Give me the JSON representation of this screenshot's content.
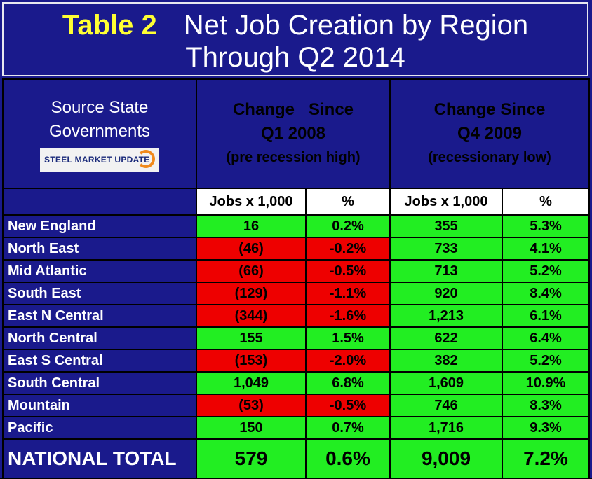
{
  "title": {
    "tag": "Table 2",
    "line1": "Net Job Creation by Region",
    "line2": "Through Q2 2014"
  },
  "header": {
    "source_line1": "Source State",
    "source_line2": "Governments",
    "logo_text": "STEEL MARKET UPDATE",
    "group1_line1": "Change   Since",
    "group1_line2": "Q1 2008",
    "group1_line3": "(pre recession high)",
    "group2_line1": "Change Since",
    "group2_line2": "Q4 2009",
    "group2_line3": "(recessionary low)"
  },
  "columns": [
    "Jobs x 1,000",
    "%",
    "Jobs x 1,000",
    "%"
  ],
  "rows": [
    {
      "name": "New England",
      "jobs1": "16",
      "pct1": "0.2%",
      "neg": false,
      "jobs2": "355",
      "pct2": "5.3%"
    },
    {
      "name": "North East",
      "jobs1": "(46)",
      "pct1": "-0.2%",
      "neg": true,
      "jobs2": "733",
      "pct2": "4.1%"
    },
    {
      "name": "Mid Atlantic",
      "jobs1": "(66)",
      "pct1": "-0.5%",
      "neg": true,
      "jobs2": "713",
      "pct2": "5.2%"
    },
    {
      "name": "South East",
      "jobs1": "(129)",
      "pct1": "-1.1%",
      "neg": true,
      "jobs2": "920",
      "pct2": "8.4%"
    },
    {
      "name": "East N Central",
      "jobs1": "(344)",
      "pct1": "-1.6%",
      "neg": true,
      "jobs2": "1,213",
      "pct2": "6.1%"
    },
    {
      "name": "North Central",
      "jobs1": "155",
      "pct1": "1.5%",
      "neg": false,
      "jobs2": "622",
      "pct2": "6.4%"
    },
    {
      "name": "East S Central",
      "jobs1": "(153)",
      "pct1": "-2.0%",
      "neg": true,
      "jobs2": "382",
      "pct2": "5.2%"
    },
    {
      "name": "South Central",
      "jobs1": "1,049",
      "pct1": "6.8%",
      "neg": false,
      "jobs2": "1,609",
      "pct2": "10.9%"
    },
    {
      "name": "Mountain",
      "jobs1": "(53)",
      "pct1": "-0.5%",
      "neg": true,
      "jobs2": "746",
      "pct2": "8.3%"
    },
    {
      "name": "Pacific",
      "jobs1": "150",
      "pct1": "0.7%",
      "neg": false,
      "jobs2": "1,716",
      "pct2": "9.3%"
    }
  ],
  "total": {
    "name": "NATIONAL TOTAL",
    "jobs1": "579",
    "pct1": "0.6%",
    "jobs2": "9,009",
    "pct2": "7.2%"
  },
  "colors": {
    "positive": "#22ee22",
    "negative": "#ee0000",
    "background": "#1a1a8c",
    "title_tag": "#ffff33"
  }
}
